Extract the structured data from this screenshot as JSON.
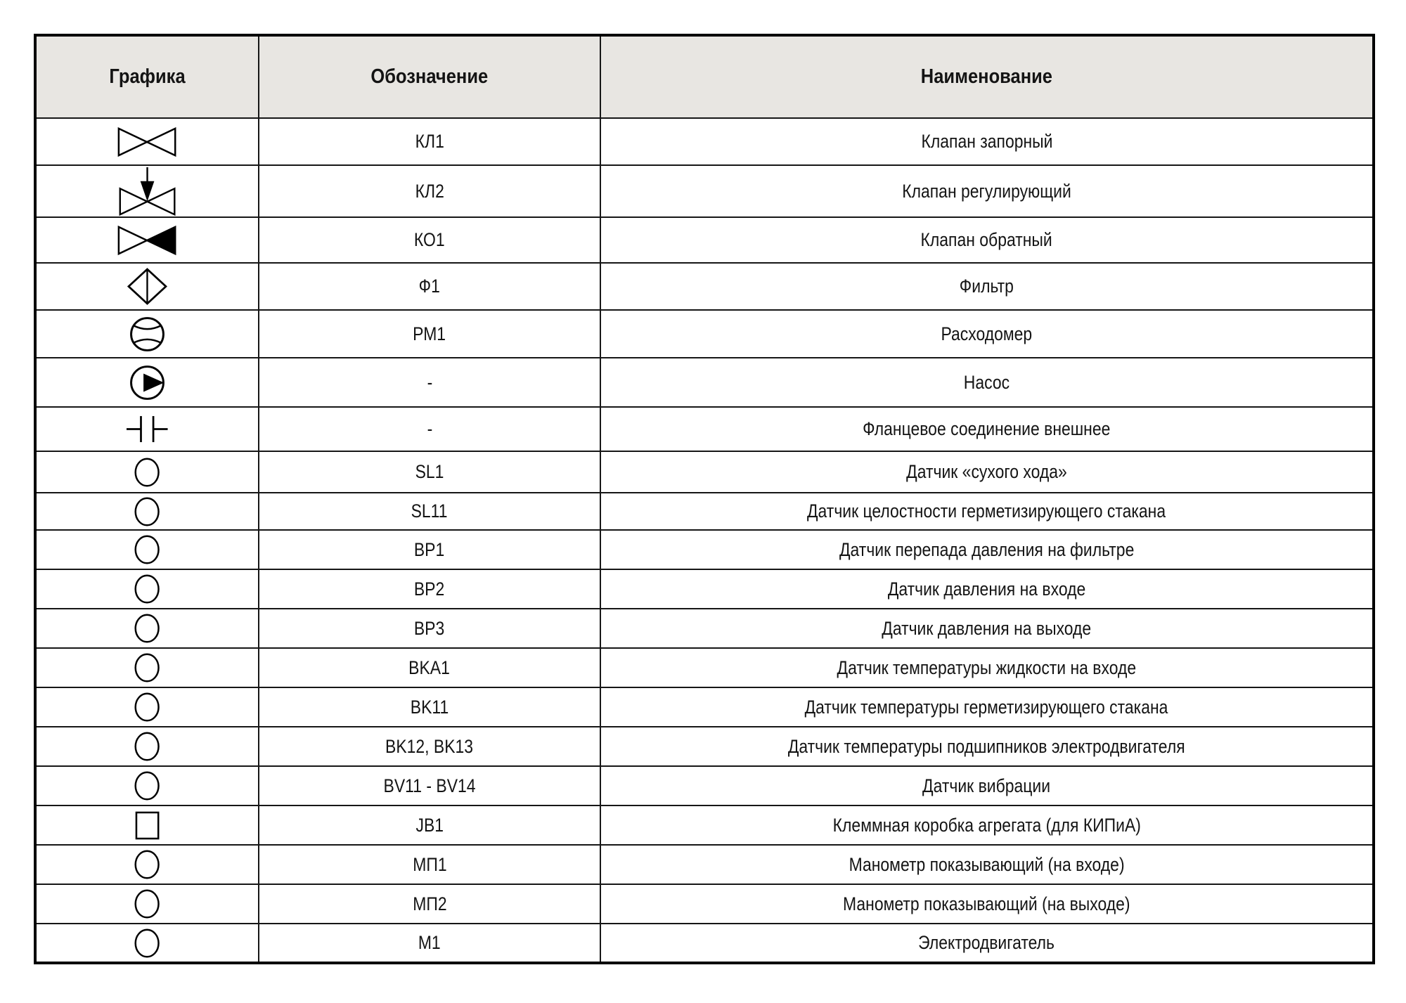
{
  "colors": {
    "header_bg": "#e8e6e2",
    "border": "#000000",
    "text": "#141414",
    "page_bg": "#ffffff"
  },
  "table": {
    "headers": [
      "Графика",
      "Обозначение",
      "Наименование"
    ],
    "rows": [
      {
        "symbol": "shutoff-valve",
        "designation": "КЛ1",
        "name": "Клапан запорный"
      },
      {
        "symbol": "control-valve",
        "designation": "КЛ2",
        "name": "Клапан регулирующий"
      },
      {
        "symbol": "check-valve",
        "designation": "КО1",
        "name": "Клапан обратный"
      },
      {
        "symbol": "filter",
        "designation": "Ф1",
        "name": "Фильтр"
      },
      {
        "symbol": "flowmeter",
        "designation": "РМ1",
        "name": "Расходомер"
      },
      {
        "symbol": "pump",
        "designation": "-",
        "name": "Насос"
      },
      {
        "symbol": "flange",
        "designation": "-",
        "name": "Фланцевое соединение внешнее"
      },
      {
        "symbol": "sensor-circle",
        "designation": "SL1",
        "name": "Датчик «сухого хода»"
      },
      {
        "symbol": "sensor-circle",
        "designation": "SL11",
        "name": "Датчик целостности герметизирующего стакана"
      },
      {
        "symbol": "sensor-circle",
        "designation": "BP1",
        "name": "Датчик перепада давления на фильтре"
      },
      {
        "symbol": "sensor-circle",
        "designation": "BP2",
        "name": "Датчик давления на входе"
      },
      {
        "symbol": "sensor-circle",
        "designation": "BP3",
        "name": "Датчик давления на выходе"
      },
      {
        "symbol": "sensor-circle",
        "designation": "BKA1",
        "name": "Датчик температуры жидкости на входе"
      },
      {
        "symbol": "sensor-circle",
        "designation": "BK11",
        "name": "Датчик температуры герметизирующего стакана"
      },
      {
        "symbol": "sensor-circle",
        "designation": "BK12, BK13",
        "name": "Датчик температуры подшипников электродвигателя"
      },
      {
        "symbol": "sensor-circle",
        "designation": "BV11 - BV14",
        "name": "Датчик вибрации"
      },
      {
        "symbol": "junction-box",
        "designation": "JB1",
        "name": "Клеммная коробка агрегата (для КИПиА)"
      },
      {
        "symbol": "sensor-circle",
        "designation": "МП1",
        "name": "Манометр показывающий (на входе)"
      },
      {
        "symbol": "sensor-circle",
        "designation": "МП2",
        "name": "Манометр показывающий (на выходе)"
      },
      {
        "symbol": "sensor-circle",
        "designation": "М1",
        "name": "Электродвигатель"
      }
    ]
  }
}
